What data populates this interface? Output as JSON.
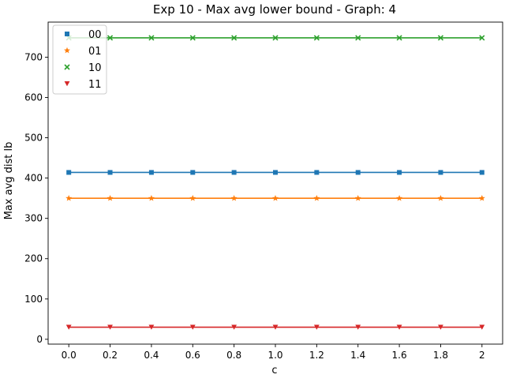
{
  "chart_data": {
    "type": "line",
    "title": "Exp 10 - Max avg lower bound - Graph: 4",
    "xlabel": "c",
    "ylabel": "Max avg dist lb",
    "x": [
      0.0,
      0.2,
      0.4,
      0.6,
      0.8,
      1.0,
      1.2,
      1.4,
      1.6,
      1.8,
      2.0
    ],
    "x_tick_labels": [
      "0.0",
      "0.2",
      "0.4",
      "0.6",
      "0.8",
      "1.0",
      "1.2",
      "1.4",
      "1.6",
      "1.8",
      "2"
    ],
    "xlim": [
      -0.1,
      2.1
    ],
    "ylim": [
      -12,
      787
    ],
    "y_ticks": [
      0,
      100,
      200,
      300,
      400,
      500,
      600,
      700
    ],
    "grid": false,
    "legend_position": "top-left",
    "series": [
      {
        "name": "00",
        "marker": "square",
        "color": "#1f77b4",
        "values": [
          414,
          414,
          414,
          414,
          414,
          414,
          414,
          414,
          414,
          414,
          414
        ]
      },
      {
        "name": "01",
        "marker": "star",
        "color": "#ff7f0e",
        "values": [
          350,
          350,
          350,
          350,
          350,
          350,
          350,
          350,
          350,
          350,
          350
        ]
      },
      {
        "name": "10",
        "marker": "x",
        "color": "#2ca02c",
        "values": [
          748,
          748,
          748,
          748,
          748,
          748,
          748,
          748,
          748,
          748,
          748
        ]
      },
      {
        "name": "11",
        "marker": "triangle-down",
        "color": "#d62728",
        "values": [
          30,
          30,
          30,
          30,
          30,
          30,
          30,
          30,
          30,
          30,
          30
        ]
      }
    ]
  }
}
